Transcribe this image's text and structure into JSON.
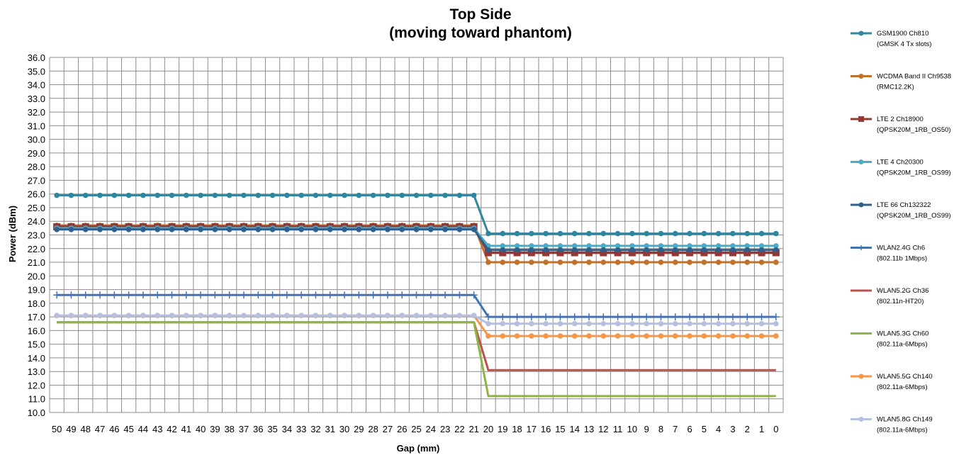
{
  "chart_data": {
    "type": "line",
    "title": [
      "Top Side",
      "(moving toward phantom)"
    ],
    "xlabel": "Gap (mm)",
    "ylabel": "Power (dBm)",
    "categories": [
      "50",
      "49",
      "48",
      "47",
      "46",
      "45",
      "44",
      "43",
      "42",
      "41",
      "40",
      "39",
      "38",
      "37",
      "36",
      "35",
      "34",
      "33",
      "32",
      "31",
      "30",
      "29",
      "28",
      "27",
      "26",
      "25",
      "24",
      "23",
      "22",
      "21",
      "20",
      "19",
      "18",
      "17",
      "16",
      "15",
      "14",
      "13",
      "12",
      "11",
      "10",
      "9",
      "8",
      "7",
      "6",
      "5",
      "4",
      "3",
      "2",
      "1",
      "0"
    ],
    "ylim": [
      10.0,
      36.0
    ],
    "ystep": 1.0,
    "grid": true,
    "legend_position": "right",
    "series": [
      {
        "name": "GSM1900  Ch810",
        "name2": "(GMSK 4 Tx slots)",
        "color": "#31859c",
        "marker": "circle",
        "near": 23.1,
        "far": 25.9
      },
      {
        "name": "WCDMA Band II Ch9538",
        "name2": "(RMC12.2K)",
        "color": "#c0712a",
        "marker": "circle",
        "near": 21.0,
        "far": 23.7
      },
      {
        "name": "LTE 2 Ch18900",
        "name2": "(QPSK20M_1RB_OS50)",
        "color": "#953735",
        "marker": "square",
        "near": 21.7,
        "far": 23.6
      },
      {
        "name": "LTE 4 Ch20300",
        "name2": "(QPSK20M_1RB_OS99)",
        "color": "#4bacc6",
        "marker": "circle",
        "near": 22.2,
        "far": 23.5
      },
      {
        "name": "LTE 66 Ch132322",
        "name2": "(QPSK20M_1RB_OS99)",
        "color": "#2f5f8a",
        "marker": "circle",
        "near": 21.9,
        "far": 23.4
      },
      {
        "name": "WLAN2.4G  Ch6",
        "name2": "(802.11b 1Mbps)",
        "color": "#4472b4",
        "marker": "plus",
        "near": 17.0,
        "far": 18.6
      },
      {
        "name": "WLAN5.2G  Ch36",
        "name2": "(802.11n-HT20)",
        "color": "#c0504d",
        "marker": "none",
        "near": 13.1,
        "far": 16.6
      },
      {
        "name": "WLAN5.3G  Ch60",
        "name2": "(802.11a-6Mbps)",
        "color": "#8db544",
        "marker": "none",
        "near": 11.2,
        "far": 16.6
      },
      {
        "name": "WLAN5.5G  Ch140",
        "name2": "(802.11a-6Mbps)",
        "color": "#f79646",
        "marker": "circle",
        "near": 15.6,
        "far": 17.1
      },
      {
        "name": "WLAN5.8G  Ch149",
        "name2": "(802.11a-6Mbps)",
        "color": "#b4c0de",
        "marker": "circle",
        "near": 16.5,
        "far": 17.1
      }
    ],
    "step_after_gap": "21"
  }
}
